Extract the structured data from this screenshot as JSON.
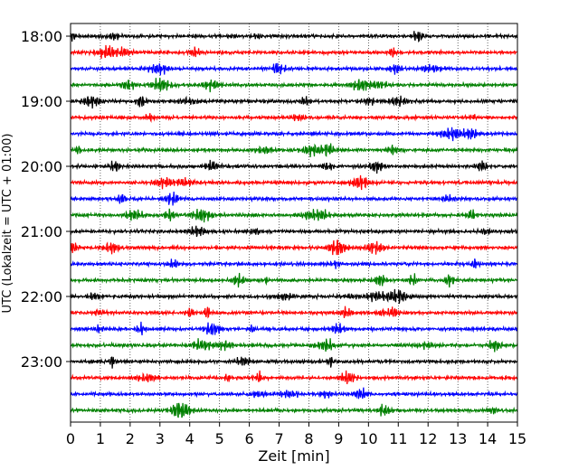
{
  "chart_data": {
    "type": "line",
    "title": "",
    "xlabel": "Zeit  [min]",
    "ylabel": "UTC (Lokalzeit = UTC + 01:00)",
    "xlim": [
      0,
      15
    ],
    "x_ticks": [
      "0",
      "1",
      "2",
      "3",
      "4",
      "5",
      "6",
      "7",
      "8",
      "9",
      "10",
      "11",
      "12",
      "13",
      "14",
      "15"
    ],
    "y_ticks": [
      {
        "label": "18:00",
        "row": 0
      },
      {
        "label": "19:00",
        "row": 4
      },
      {
        "label": "20:00",
        "row": 8
      },
      {
        "label": "21:00",
        "row": 12
      },
      {
        "label": "22:00",
        "row": 16
      },
      {
        "label": "23:00",
        "row": 20
      }
    ],
    "row_minutes": 15,
    "rows_start": "18:00",
    "rows_end": "23:45",
    "row_count": 24,
    "grid": {
      "x": true,
      "y": false,
      "style": "dotted"
    },
    "series_colors": [
      "#000000",
      "#ff0000",
      "#0000ff",
      "#008000"
    ],
    "trace_amplitude": 0.28
  }
}
